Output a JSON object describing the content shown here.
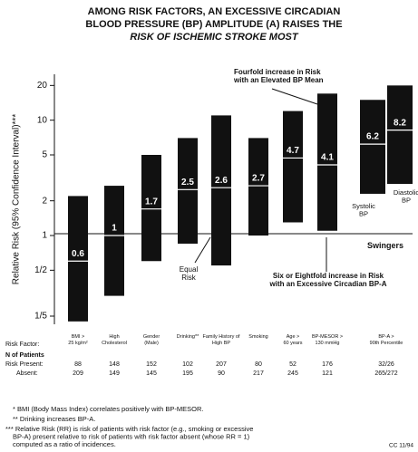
{
  "chart_data": {
    "type": "range",
    "title_lines": [
      "AMONG RISK FACTORS, AN EXCESSIVE CIRCADIAN",
      "BLOOD PRESSURE (BP) AMPLITUDE (A) RAISES THE",
      "RISK OF ISCHEMIC STROKE MOST"
    ],
    "y_label": "Relative Risk (95% Confidence Interval)***",
    "log_scale": true,
    "ylim": [
      0.17,
      25
    ],
    "yticks": [
      {
        "value": 0.2,
        "label": "1/5"
      },
      {
        "value": 0.5,
        "label": "1/2"
      },
      1,
      2,
      5,
      10,
      20
    ],
    "color": "#111111",
    "categories": [
      "BMI > 25 kg/m²",
      "High Cholesterol",
      "Gender (Male)",
      "Drinking**",
      "Family History of High BP",
      "Smoking",
      "Age > 60 years",
      "BP-MESOR > 130 mmHg",
      "BP-A > 90th Percentile",
      null
    ],
    "low": [
      0.18,
      0.3,
      0.6,
      0.85,
      0.55,
      1.0,
      1.3,
      1.1,
      2.3,
      2.8
    ],
    "high": [
      2.2,
      2.7,
      5,
      7,
      11,
      7,
      12,
      17,
      15,
      20
    ],
    "estimate": [
      0.6,
      1.0,
      1.7,
      2.5,
      2.6,
      2.7,
      4.7,
      4.1,
      6.2,
      8.2
    ],
    "annotations": [
      "Fourfold increase in Risk with an Elevated BP Mean",
      "Equal Risk",
      "Six or Eightfold increase in Risk with an Excessive Circadian BP-A",
      "Swingers",
      "Systolic BP",
      "Diastolic BP"
    ]
  },
  "table": {
    "row_label": "Risk Factor:",
    "section_label": "N of Patients",
    "present_label": "Risk Present:",
    "absent_label": "Absent:",
    "present": [
      88,
      148,
      152,
      102,
      207,
      80,
      52,
      176,
      "32/26"
    ],
    "absent": [
      209,
      149,
      145,
      195,
      90,
      217,
      245,
      121,
      "265/272"
    ]
  },
  "footnotes": [
    "* BMI (Body Mass Index) correlates positively with BP-MESOR.",
    "** Drinking increases BP-A.",
    "*** Relative Risk (RR) is risk of patients with risk factor (e.g., smoking or excessive BP-A) present relative to risk of patients with risk factor absent (whose RR = 1) computed as a ratio of incidences."
  ],
  "code": "CC 11/94"
}
